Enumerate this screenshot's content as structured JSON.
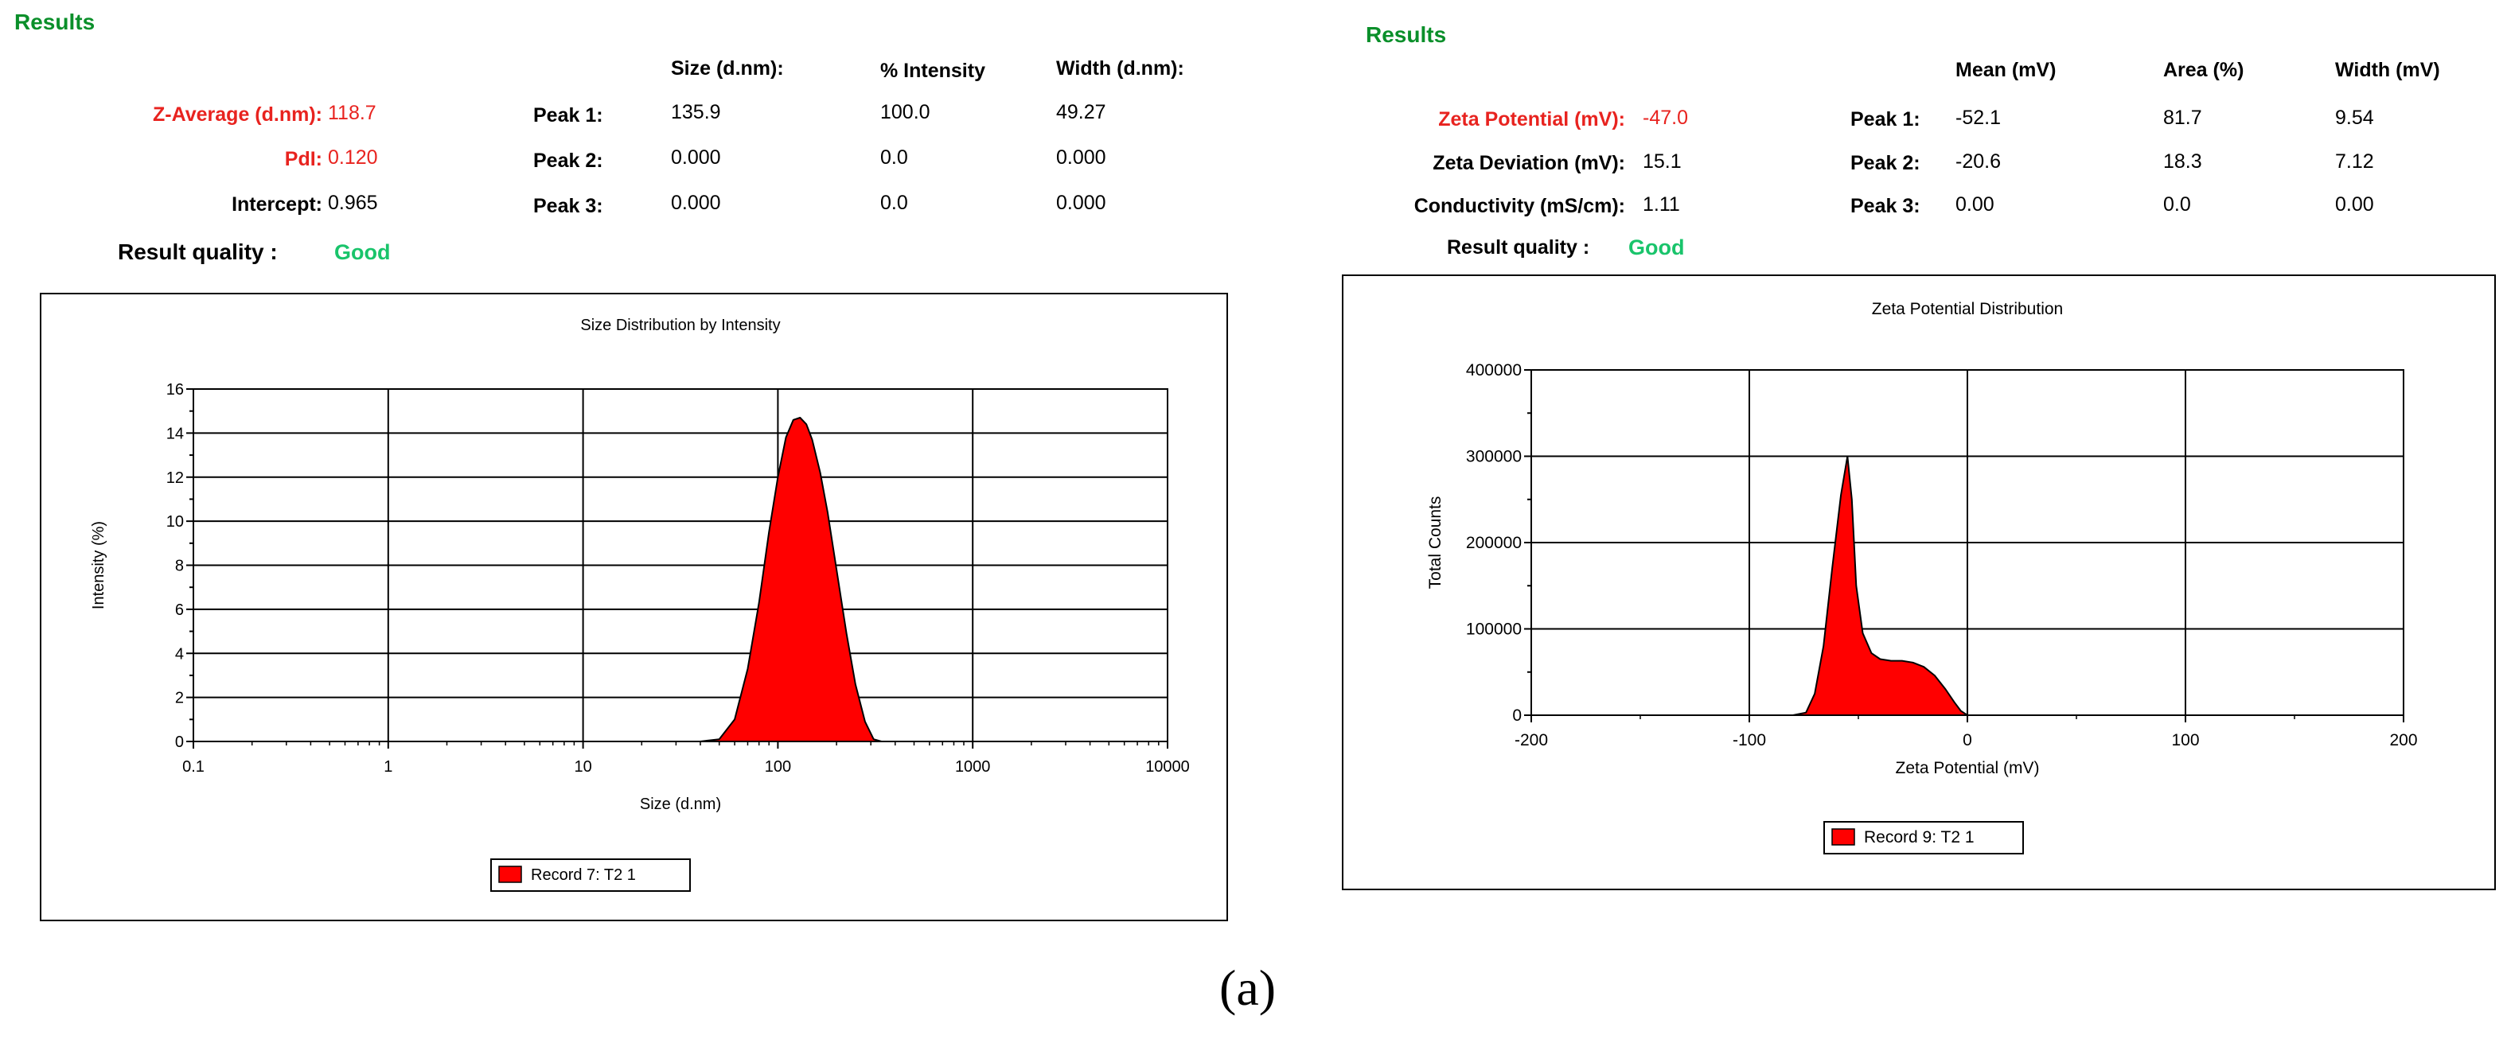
{
  "left": {
    "results_title": "Results",
    "headers": {
      "size": "Size (d.nm):",
      "intensity": "% Intensity",
      "width": "Width (d.nm):"
    },
    "z_average": {
      "label": "Z-Average (d.nm):",
      "value": "118.7"
    },
    "pdi": {
      "label": "PdI:",
      "value": "0.120"
    },
    "intercept": {
      "label": "Intercept:",
      "value": "0.965"
    },
    "peaks": [
      {
        "label": "Peak 1:",
        "size": "135.9",
        "intensity": "100.0",
        "width": "49.27"
      },
      {
        "label": "Peak 2:",
        "size": "0.000",
        "intensity": "0.0",
        "width": "0.000"
      },
      {
        "label": "Peak 3:",
        "size": "0.000",
        "intensity": "0.0",
        "width": "0.000"
      }
    ],
    "quality": {
      "label": "Result quality :",
      "value": "Good"
    }
  },
  "right": {
    "results_title": "Results",
    "headers": {
      "mean": "Mean (mV)",
      "area": "Area (%)",
      "width": "Width (mV)"
    },
    "zeta_potential": {
      "label": "Zeta Potential (mV):",
      "value": "-47.0"
    },
    "zeta_deviation": {
      "label": "Zeta Deviation (mV):",
      "value": "15.1"
    },
    "conductivity": {
      "label": "Conductivity (mS/cm):",
      "value": "1.11"
    },
    "peaks": [
      {
        "label": "Peak 1:",
        "mean": "-52.1",
        "area": "81.7",
        "width": "9.54"
      },
      {
        "label": "Peak 2:",
        "mean": "-20.6",
        "area": "18.3",
        "width": "7.12"
      },
      {
        "label": "Peak 3:",
        "mean": "0.00",
        "area": "0.0",
        "width": "0.00"
      }
    ],
    "quality": {
      "label": "Result quality :",
      "value": "Good"
    }
  },
  "caption": "(a)",
  "colors": {
    "fill": "#ff0000",
    "good": "#19c46b",
    "red_text": "#e8231f",
    "results_green": "#0a8f2a"
  },
  "chart_data": [
    {
      "type": "area",
      "title": "Size Distribution by Intensity",
      "xlabel": "Size (d.nm)",
      "ylabel": "Intensity (%)",
      "xscale": "log",
      "xlim": [
        0.1,
        10000
      ],
      "ylim": [
        0,
        16
      ],
      "xticks": [
        0.1,
        1,
        10,
        100,
        1000,
        10000
      ],
      "xtick_labels": [
        "0.1",
        "1",
        "10",
        "100",
        "1000",
        "10000"
      ],
      "yticks": [
        0,
        2,
        4,
        6,
        8,
        10,
        12,
        14,
        16
      ],
      "ytick_labels": [
        "0",
        "2",
        "4",
        "6",
        "8",
        "10",
        "12",
        "14",
        "16"
      ],
      "grid": true,
      "legend": "bottom-center",
      "series": [
        {
          "name": "Record 7: T2 1",
          "x": [
            0.4,
            1,
            10,
            40,
            50,
            60,
            70,
            80,
            90,
            100,
            110,
            120,
            130,
            140,
            150,
            165,
            180,
            200,
            225,
            250,
            280,
            310,
            340,
            1000,
            4000
          ],
          "y": [
            0,
            0,
            0,
            0,
            0.1,
            1.0,
            3.3,
            6.3,
            9.5,
            12.0,
            13.8,
            14.6,
            14.7,
            14.4,
            13.7,
            12.2,
            10.4,
            7.8,
            4.9,
            2.6,
            0.9,
            0.1,
            0,
            0,
            0
          ]
        }
      ]
    },
    {
      "type": "area",
      "title": "Zeta Potential Distribution",
      "xlabel": "Zeta Potential (mV)",
      "ylabel": "Total Counts",
      "xlim": [
        -200,
        200
      ],
      "ylim": [
        0,
        400000
      ],
      "xticks": [
        -200,
        -100,
        0,
        100,
        200
      ],
      "xtick_labels": [
        "-200",
        "-100",
        "0",
        "100",
        "200"
      ],
      "yticks": [
        0,
        100000,
        200000,
        300000,
        400000
      ],
      "ytick_labels": [
        "0",
        "100000",
        "200000",
        "300000",
        "400000"
      ],
      "grid": true,
      "legend": "bottom-center",
      "series": [
        {
          "name": "Record 9: T2 1",
          "x": [
            -145,
            -80,
            -74,
            -70,
            -66,
            -62,
            -58,
            -55,
            -53,
            -51,
            -48,
            -44,
            -40,
            -35,
            -30,
            -25,
            -20,
            -15,
            -10,
            -6,
            -3,
            0,
            50,
            145
          ],
          "y": [
            0,
            0,
            3000,
            25000,
            80000,
            170000,
            255000,
            300000,
            250000,
            150000,
            95000,
            72000,
            65000,
            63000,
            63000,
            61000,
            56000,
            46000,
            30000,
            15000,
            5000,
            0,
            0,
            0
          ]
        }
      ]
    }
  ]
}
